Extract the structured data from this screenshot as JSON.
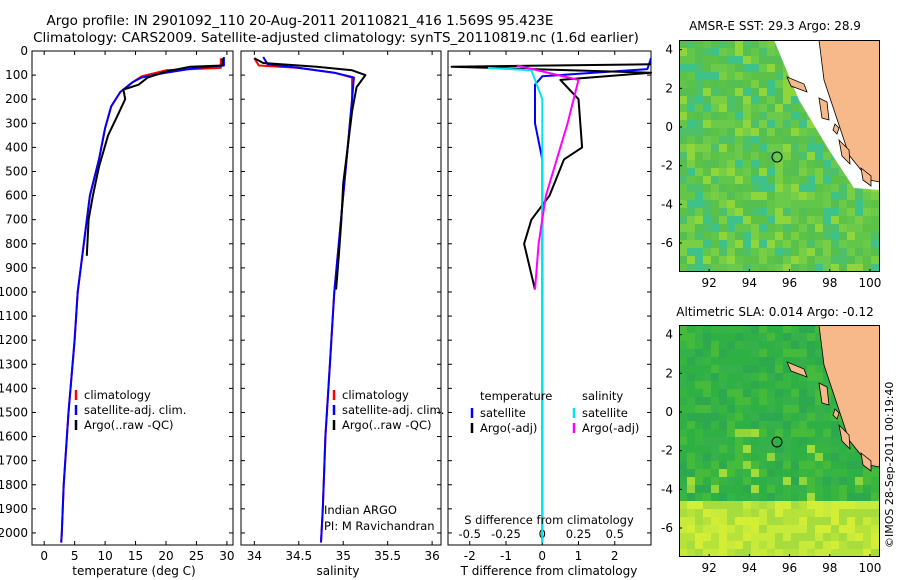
{
  "header": {
    "line1": "Argo profile: IN 2901092_110 20-Aug-2011 20110821_416 1.569S 95.423E",
    "line2": "Climatology: CARS2009. Satellite-adjusted climatology: synTS_20110819.nc (1.6d earlier)"
  },
  "credit": "©IMOS 28-Sep-2011 00:19:40",
  "colors": {
    "climatology": "#ff0000",
    "satellite": "#0000ff",
    "argo": "#000000",
    "sat_s": "#00e5ee",
    "argo_s": "#ff00ff",
    "ocean": "#4cb83a",
    "land": "#f7b98a"
  },
  "chart_data": [
    {
      "type": "line",
      "xlabel": "temperature (deg C)",
      "xlim": [
        -2,
        31
      ],
      "xticks": [
        0,
        5,
        10,
        15,
        20,
        25,
        30
      ],
      "ylim": [
        2050,
        0
      ],
      "yticks": [
        0,
        100,
        200,
        300,
        400,
        500,
        600,
        700,
        800,
        900,
        1000,
        1100,
        1200,
        1300,
        1400,
        1500,
        1600,
        1700,
        1800,
        1900,
        2000
      ],
      "legend": [
        "climatology",
        "satellite-adj. clim.",
        "Argo(..raw -QC)"
      ],
      "series": [
        {
          "name": "climatology",
          "color": "#ff0000",
          "points": [
            [
              29,
              30
            ],
            [
              29,
              70
            ],
            [
              20,
              80
            ],
            [
              16,
              105
            ],
            [
              14.5,
              130
            ],
            [
              12.5,
              170
            ],
            [
              11,
              230
            ],
            [
              10,
              320
            ],
            [
              9,
              450
            ],
            [
              7.5,
              600
            ],
            [
              6.5,
              800
            ],
            [
              5.5,
              1000
            ],
            [
              5,
              1200
            ],
            [
              4,
              1500
            ],
            [
              3.2,
              1800
            ],
            [
              2.9,
              2000
            ],
            [
              2.8,
              2040
            ]
          ]
        },
        {
          "name": "satellite-adj. clim.",
          "color": "#0000ff",
          "points": [
            [
              29.5,
              25
            ],
            [
              29.5,
              60
            ],
            [
              25,
              70
            ],
            [
              20,
              90
            ],
            [
              16,
              110
            ],
            [
              14.5,
              130
            ],
            [
              12.5,
              170
            ],
            [
              11,
              230
            ],
            [
              10,
              320
            ],
            [
              9,
              450
            ],
            [
              7.5,
              600
            ],
            [
              6.5,
              800
            ],
            [
              5.5,
              1000
            ],
            [
              5,
              1200
            ],
            [
              4,
              1500
            ],
            [
              3.2,
              1800
            ],
            [
              2.9,
              2000
            ],
            [
              2.8,
              2040
            ]
          ]
        },
        {
          "name": "Argo(..raw -QC)",
          "color": "#000000",
          "points": [
            [
              29.3,
              30
            ],
            [
              29.3,
              60
            ],
            [
              24,
              65
            ],
            [
              20,
              85
            ],
            [
              17,
              110
            ],
            [
              15.5,
              140
            ],
            [
              13,
              160
            ],
            [
              13.3,
              200
            ],
            [
              12,
              270
            ],
            [
              10.5,
              350
            ],
            [
              9,
              480
            ],
            [
              8,
              600
            ],
            [
              7.3,
              700
            ],
            [
              7.1,
              800
            ],
            [
              7,
              850
            ]
          ]
        }
      ]
    },
    {
      "type": "line",
      "xlabel": "salinity",
      "xlim": [
        33.85,
        36.1
      ],
      "xticks": [
        34,
        34.5,
        35,
        35.5,
        36
      ],
      "ylim": [
        2050,
        0
      ],
      "legend": [
        "climatology",
        "satellite-adj. clim.",
        "Argo(..raw -QC)"
      ],
      "annotations": [
        "Indian ARGO",
        "PI: M Ravichandran"
      ],
      "series": [
        {
          "name": "climatology",
          "color": "#ff0000",
          "points": [
            [
              34.0,
              30
            ],
            [
              34.05,
              60
            ],
            [
              34.5,
              70
            ],
            [
              34.9,
              90
            ],
            [
              35.1,
              110
            ],
            [
              35.1,
              200
            ],
            [
              35.05,
              400
            ],
            [
              35.0,
              600
            ],
            [
              34.95,
              800
            ],
            [
              34.9,
              1000
            ],
            [
              34.85,
              1300
            ],
            [
              34.8,
              1600
            ],
            [
              34.77,
              1900
            ],
            [
              34.75,
              2040
            ]
          ]
        },
        {
          "name": "satellite-adj. clim.",
          "color": "#0000ff",
          "points": [
            [
              34.1,
              25
            ],
            [
              34.15,
              55
            ],
            [
              34.5,
              70
            ],
            [
              34.9,
              90
            ],
            [
              35.12,
              110
            ],
            [
              35.1,
              200
            ],
            [
              35.05,
              400
            ],
            [
              35.0,
              600
            ],
            [
              34.95,
              800
            ],
            [
              34.9,
              1000
            ],
            [
              34.85,
              1300
            ],
            [
              34.8,
              1600
            ],
            [
              34.77,
              1900
            ],
            [
              34.75,
              2040
            ]
          ]
        },
        {
          "name": "Argo(..raw -QC)",
          "color": "#000000",
          "points": [
            [
              34.0,
              30
            ],
            [
              34.1,
              50
            ],
            [
              34.7,
              65
            ],
            [
              35.1,
              80
            ],
            [
              35.25,
              100
            ],
            [
              35.15,
              150
            ],
            [
              35.1,
              250
            ],
            [
              35.05,
              400
            ],
            [
              35.0,
              550
            ],
            [
              34.98,
              700
            ],
            [
              34.95,
              850
            ],
            [
              34.92,
              990
            ]
          ]
        }
      ]
    },
    {
      "type": "line",
      "xlabel": "T difference from climatology",
      "xlabel2": "S difference from climatology",
      "xlim": [
        -2.6,
        3
      ],
      "xticks": [
        -2,
        -1,
        0,
        1,
        2
      ],
      "xticks_top": [
        "-0.5",
        "-0.25",
        "0",
        "0.25",
        "0.5"
      ],
      "ylim": [
        2050,
        0
      ],
      "legend": {
        "temperature": [
          "satellite",
          "Argo(-adj)"
        ],
        "salinity": [
          "satellite",
          "Argo(-adj)"
        ]
      },
      "legend_titles": [
        "temperature",
        "salinity"
      ],
      "series": [
        {
          "name": "temperature satellite",
          "color": "#0000ff",
          "points": [
            [
              3,
              30
            ],
            [
              2.9,
              75
            ],
            [
              0,
              105
            ],
            [
              -0.2,
              140
            ],
            [
              -0.2,
              300
            ],
            [
              0,
              450
            ],
            [
              0,
              2040
            ]
          ]
        },
        {
          "name": "temperature Argo(-adj)",
          "color": "#000000",
          "points": [
            [
              3,
              55
            ],
            [
              -2.5,
              65
            ],
            [
              3,
              90
            ],
            [
              0.5,
              120
            ],
            [
              1,
              200
            ],
            [
              1.1,
              400
            ],
            [
              0.6,
              450
            ],
            [
              0.2,
              600
            ],
            [
              -0.3,
              700
            ],
            [
              -0.5,
              800
            ],
            [
              -0.2,
              990
            ]
          ]
        },
        {
          "name": "salinity satellite",
          "color": "#00e5ee",
          "points": [
            [
              -1.5,
              70
            ],
            [
              -0.3,
              80
            ],
            [
              0,
              200
            ],
            [
              0,
              2040
            ]
          ]
        },
        {
          "name": "salinity Argo(-adj)",
          "color": "#ff00ff",
          "points": [
            [
              -0.7,
              60
            ],
            [
              1,
              120
            ],
            [
              0.7,
              300
            ],
            [
              0.1,
              600
            ],
            [
              -0.1,
              800
            ],
            [
              -0.2,
              990
            ]
          ]
        }
      ]
    },
    {
      "type": "heatmap",
      "title": "AMSR-E SST: 29.3 Argo: 28.9",
      "xticks": [
        92,
        94,
        96,
        98,
        100
      ],
      "yticks": [
        4,
        2,
        0,
        -2,
        -4,
        -6
      ],
      "xlim": [
        90.5,
        100.5
      ],
      "ylim": [
        -7.5,
        4.5
      ],
      "marker": [
        95.42,
        -1.57
      ]
    },
    {
      "type": "heatmap",
      "title": "Altimetric SLA: 0.014 Argo: -0.12",
      "xticks": [
        92,
        94,
        96,
        98,
        100
      ],
      "yticks": [
        4,
        2,
        0,
        -2,
        -4,
        -6
      ],
      "xlim": [
        90.5,
        100.5
      ],
      "ylim": [
        -7.5,
        4.5
      ],
      "marker": [
        95.42,
        -1.57
      ]
    }
  ]
}
